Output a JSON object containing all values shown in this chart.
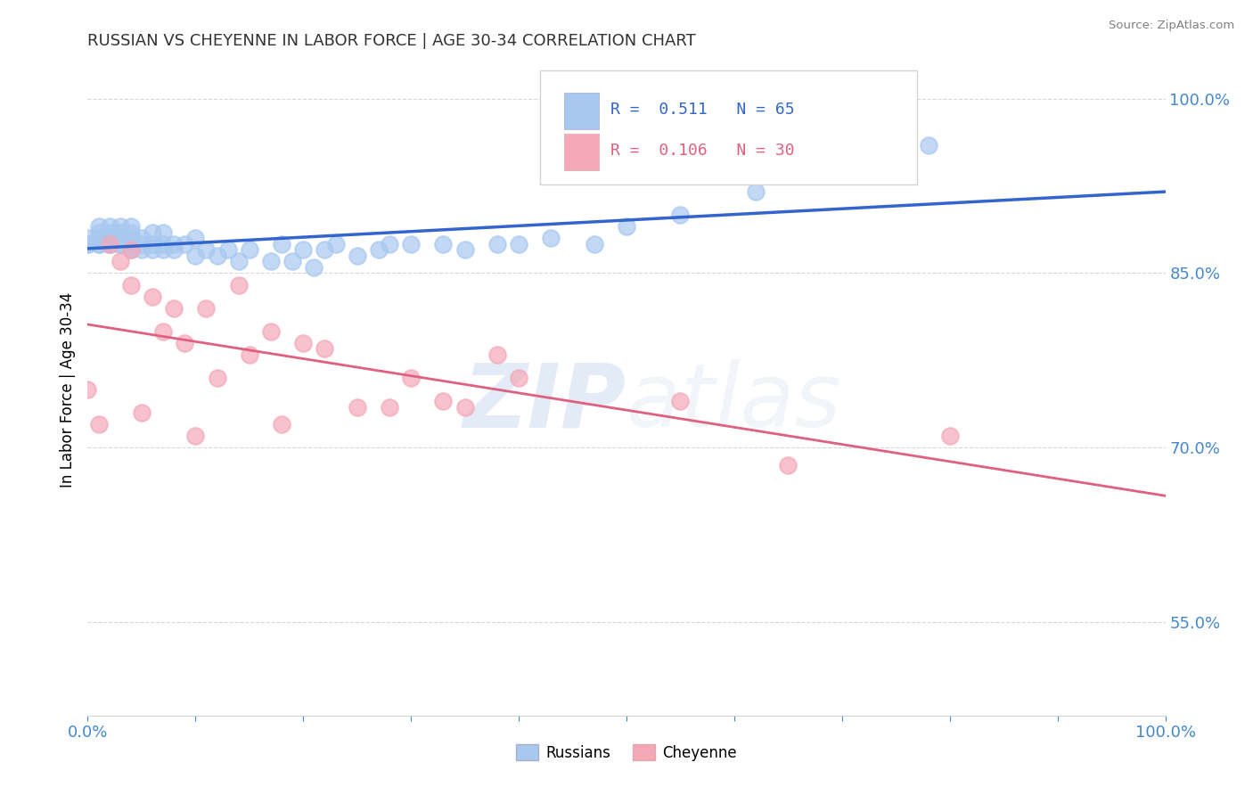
{
  "title": "RUSSIAN VS CHEYENNE IN LABOR FORCE | AGE 30-34 CORRELATION CHART",
  "source": "Source: ZipAtlas.com",
  "ylabel": "In Labor Force | Age 30-34",
  "ytick_labels": [
    "55.0%",
    "70.0%",
    "85.0%",
    "100.0%"
  ],
  "ytick_values": [
    0.55,
    0.7,
    0.85,
    1.0
  ],
  "legend_r_russian": "0.511",
  "legend_n_russian": "65",
  "legend_r_cheyenne": "0.106",
  "legend_n_cheyenne": "30",
  "russian_color": "#A8C8F0",
  "cheyenne_color": "#F4A8B8",
  "russian_line_color": "#3366CC",
  "cheyenne_line_color": "#E06080",
  "watermark_zip": "ZIP",
  "watermark_atlas": "atlas",
  "russian_x": [
    0.0,
    0.0,
    0.0,
    0.01,
    0.01,
    0.01,
    0.01,
    0.01,
    0.02,
    0.02,
    0.02,
    0.02,
    0.02,
    0.02,
    0.03,
    0.03,
    0.03,
    0.03,
    0.03,
    0.04,
    0.04,
    0.04,
    0.04,
    0.04,
    0.05,
    0.05,
    0.05,
    0.06,
    0.06,
    0.06,
    0.07,
    0.07,
    0.07,
    0.08,
    0.08,
    0.09,
    0.1,
    0.1,
    0.11,
    0.12,
    0.13,
    0.14,
    0.15,
    0.17,
    0.18,
    0.19,
    0.2,
    0.21,
    0.22,
    0.23,
    0.25,
    0.27,
    0.28,
    0.3,
    0.33,
    0.35,
    0.38,
    0.4,
    0.43,
    0.47,
    0.5,
    0.55,
    0.62,
    0.7,
    0.78
  ],
  "russian_y": [
    0.875,
    0.875,
    0.88,
    0.875,
    0.875,
    0.88,
    0.885,
    0.89,
    0.875,
    0.875,
    0.88,
    0.88,
    0.885,
    0.89,
    0.875,
    0.875,
    0.88,
    0.885,
    0.89,
    0.87,
    0.875,
    0.88,
    0.885,
    0.89,
    0.87,
    0.875,
    0.88,
    0.87,
    0.875,
    0.885,
    0.87,
    0.875,
    0.885,
    0.87,
    0.875,
    0.875,
    0.865,
    0.88,
    0.87,
    0.865,
    0.87,
    0.86,
    0.87,
    0.86,
    0.875,
    0.86,
    0.87,
    0.855,
    0.87,
    0.875,
    0.865,
    0.87,
    0.875,
    0.875,
    0.875,
    0.87,
    0.875,
    0.875,
    0.88,
    0.875,
    0.89,
    0.9,
    0.92,
    0.94,
    0.96
  ],
  "cheyenne_x": [
    0.0,
    0.01,
    0.02,
    0.03,
    0.04,
    0.04,
    0.05,
    0.06,
    0.07,
    0.08,
    0.09,
    0.1,
    0.11,
    0.12,
    0.14,
    0.15,
    0.17,
    0.18,
    0.2,
    0.22,
    0.25,
    0.28,
    0.3,
    0.33,
    0.35,
    0.38,
    0.4,
    0.55,
    0.65,
    0.8
  ],
  "cheyenne_y": [
    0.75,
    0.72,
    0.875,
    0.86,
    0.84,
    0.87,
    0.73,
    0.83,
    0.8,
    0.82,
    0.79,
    0.71,
    0.82,
    0.76,
    0.84,
    0.78,
    0.8,
    0.72,
    0.79,
    0.785,
    0.735,
    0.735,
    0.76,
    0.74,
    0.735,
    0.78,
    0.76,
    0.74,
    0.685,
    0.71
  ],
  "xlim": [
    0.0,
    1.0
  ],
  "ylim": [
    0.47,
    1.03
  ],
  "figsize": [
    14.06,
    8.92
  ],
  "dpi": 100
}
